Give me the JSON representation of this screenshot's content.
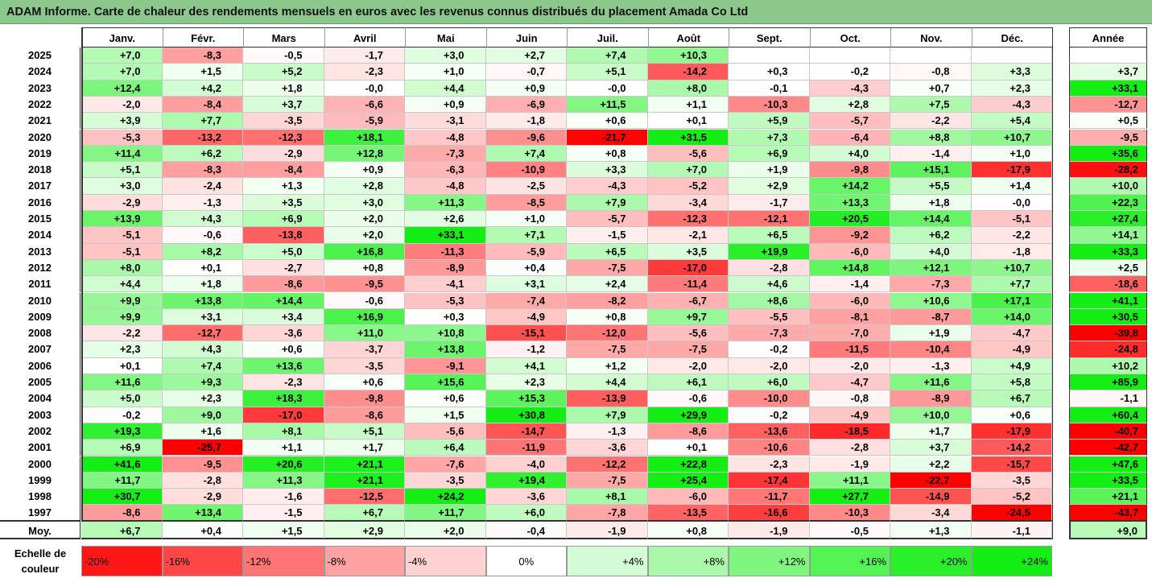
{
  "title": "ADAM Informe. Carte de chaleur des rendements mensuels en euros avec les revenus connus distribués du placement Amada Co Ltd",
  "chart_data": {
    "type": "heatmap",
    "months": [
      "Janv.",
      "Févr.",
      "Mars",
      "Avril",
      "Mai",
      "Juin",
      "Juil.",
      "Août",
      "Sept.",
      "Oct.",
      "Nov.",
      "Déc."
    ],
    "year_header": "Année",
    "rows": [
      {
        "year": "2025",
        "values": [
          "+7,0",
          "-8,3",
          "-0,5",
          "-1,7",
          "+3,0",
          "+2,7",
          "+7,4",
          "+10,3",
          "",
          "",
          "",
          ""
        ],
        "annual": ""
      },
      {
        "year": "2024",
        "values": [
          "+7,0",
          "+1,5",
          "+5,2",
          "-2,3",
          "+1,0",
          "-0,7",
          "+5,1",
          "-14,2",
          "+0,3",
          "-0,2",
          "-0,8",
          "+3,3"
        ],
        "annual": "+3,7"
      },
      {
        "year": "2023",
        "values": [
          "+12,4",
          "+4,2",
          "+1,8",
          "-0,0",
          "+4,4",
          "+0,9",
          "-0,0",
          "+8,0",
          "-0,1",
          "-4,3",
          "+0,7",
          "+2,3"
        ],
        "annual": "+33,1"
      },
      {
        "year": "2022",
        "values": [
          "-2,0",
          "-8,4",
          "+3,7",
          "-6,6",
          "+0,9",
          "-6,9",
          "+11,5",
          "+1,1",
          "-10,3",
          "+2,8",
          "+7,5",
          "-4,3"
        ],
        "annual": "-12,7"
      },
      {
        "year": "2021",
        "values": [
          "+3,9",
          "+7,7",
          "-3,5",
          "-5,9",
          "-3,1",
          "-1,8",
          "+0,6",
          "+0,1",
          "+5,9",
          "-5,7",
          "-2,2",
          "+5,4"
        ],
        "annual": "+0,5"
      },
      {
        "year": "2020",
        "values": [
          "-5,3",
          "-13,2",
          "-12,3",
          "+18,1",
          "-4,8",
          "-9,6",
          "-21,7",
          "+31,5",
          "+7,3",
          "-6,4",
          "+8,8",
          "+10,7"
        ],
        "annual": "-9,5"
      },
      {
        "year": "2019",
        "values": [
          "+11,4",
          "+6,2",
          "-2,9",
          "+12,8",
          "-7,3",
          "+7,4",
          "+0,8",
          "-5,6",
          "+6,9",
          "+4,0",
          "-1,4",
          "+1,0"
        ],
        "annual": "+35,6"
      },
      {
        "year": "2018",
        "values": [
          "+5,1",
          "-8,3",
          "-8,4",
          "+0,9",
          "-6,3",
          "-10,9",
          "+3,3",
          "+7,0",
          "+1,9",
          "-9,8",
          "+15,1",
          "-17,9"
        ],
        "annual": "-28,2"
      },
      {
        "year": "2017",
        "values": [
          "+3,0",
          "-2,4",
          "+1,3",
          "+2,8",
          "-4,8",
          "-2,5",
          "-4,3",
          "-5,2",
          "+2,9",
          "+14,2",
          "+5,5",
          "+1,4"
        ],
        "annual": "+10,0"
      },
      {
        "year": "2016",
        "values": [
          "-2,9",
          "-1,3",
          "+3,5",
          "+3,0",
          "+11,3",
          "-8,5",
          "+7,9",
          "-3,4",
          "-1,7",
          "+13,3",
          "+1,8",
          "-0,0"
        ],
        "annual": "+22,3"
      },
      {
        "year": "2015",
        "values": [
          "+13,9",
          "+4,3",
          "+6,9",
          "+2,0",
          "+2,6",
          "+1,0",
          "-5,7",
          "-12,3",
          "-12,1",
          "+20,5",
          "+14,4",
          "-5,1"
        ],
        "annual": "+27,4"
      },
      {
        "year": "2014",
        "values": [
          "-5,1",
          "-0,6",
          "-13,8",
          "+2,0",
          "+33,1",
          "+7,1",
          "-1,5",
          "-2,1",
          "+6,5",
          "-9,2",
          "+6,2",
          "-2,2"
        ],
        "annual": "+14,1"
      },
      {
        "year": "2013",
        "values": [
          "-5,1",
          "+8,2",
          "+5,0",
          "+16,8",
          "-11,3",
          "-5,9",
          "+6,5",
          "+3,5",
          "+19,9",
          "-6,0",
          "+4,0",
          "-1,8"
        ],
        "annual": "+33,3"
      },
      {
        "year": "2012",
        "values": [
          "+8,0",
          "+0,1",
          "-2,7",
          "+0,8",
          "-8,9",
          "+0,4",
          "-7,5",
          "-17,0",
          "-2,8",
          "+14,8",
          "+12,1",
          "+10,7"
        ],
        "annual": "+2,5"
      },
      {
        "year": "2011",
        "values": [
          "+4,4",
          "+1,8",
          "-8,6",
          "-9,5",
          "-4,1",
          "+3,1",
          "+2,4",
          "-11,4",
          "+4,6",
          "-1,4",
          "-7,3",
          "+7,7"
        ],
        "annual": "-18,6"
      },
      {
        "year": "2010",
        "values": [
          "+9,9",
          "+13,8",
          "+14,4",
          "-0,6",
          "-5,3",
          "-7,4",
          "-8,2",
          "-6,7",
          "+8,6",
          "-6,0",
          "+10,6",
          "+17,1"
        ],
        "annual": "+41,1"
      },
      {
        "year": "2009",
        "values": [
          "+9,9",
          "+3,1",
          "+3,4",
          "+16,9",
          "+0,3",
          "-4,9",
          "+0,8",
          "+9,7",
          "-5,5",
          "-8,1",
          "-8,7",
          "+14,0"
        ],
        "annual": "+30,5"
      },
      {
        "year": "2008",
        "values": [
          "-2,2",
          "-12,7",
          "-3,6",
          "+11,0",
          "+10,8",
          "-15,1",
          "-12,0",
          "-5,6",
          "-7,3",
          "-7,0",
          "+1,9",
          "-4,7"
        ],
        "annual": "-39,8"
      },
      {
        "year": "2007",
        "values": [
          "+2,3",
          "+4,3",
          "+0,6",
          "-3,7",
          "+13,8",
          "-1,2",
          "-7,5",
          "-7,5",
          "-0,2",
          "-11,5",
          "-10,4",
          "-4,9"
        ],
        "annual": "-24,8"
      },
      {
        "year": "2006",
        "values": [
          "+0,1",
          "+7,4",
          "+13,6",
          "-3,5",
          "-9,1",
          "+4,1",
          "+1,2",
          "-2,0",
          "-2,0",
          "-2,0",
          "-1,3",
          "+4,9"
        ],
        "annual": "+10,2"
      },
      {
        "year": "2005",
        "values": [
          "+11,6",
          "+9,3",
          "-2,3",
          "+0,6",
          "+15,6",
          "+2,3",
          "+4,4",
          "+6,1",
          "+6,0",
          "-4,7",
          "+11,6",
          "+5,8"
        ],
        "annual": "+85,9"
      },
      {
        "year": "2004",
        "values": [
          "+5,0",
          "+2,3",
          "+18,3",
          "-9,8",
          "+0,6",
          "+15,3",
          "-13,9",
          "-0,6",
          "-10,0",
          "-0,8",
          "-8,9",
          "+6,7"
        ],
        "annual": "-1,1"
      },
      {
        "year": "2003",
        "values": [
          "-0,2",
          "+9,0",
          "-17,0",
          "-8,6",
          "+1,5",
          "+30,8",
          "+7,9",
          "+29,9",
          "-0,2",
          "-4,9",
          "+10,0",
          "+0,6"
        ],
        "annual": "+60,4"
      },
      {
        "year": "2002",
        "values": [
          "+19,3",
          "+1,6",
          "+8,1",
          "+5,1",
          "-5,6",
          "-14,7",
          "-1,3",
          "-8,6",
          "-13,6",
          "-18,5",
          "+1,7",
          "-17,9"
        ],
        "annual": "-40,7"
      },
      {
        "year": "2001",
        "values": [
          "+6,9",
          "-25,7",
          "+1,1",
          "+1,7",
          "+6,4",
          "-11,9",
          "-3,6",
          "+0,1",
          "-10,6",
          "-2,8",
          "+3,7",
          "-14,2"
        ],
        "annual": "-42,7"
      },
      {
        "year": "2000",
        "values": [
          "+41,6",
          "-9,5",
          "+20,6",
          "+21,1",
          "-7,6",
          "-4,0",
          "-12,2",
          "+22,8",
          "-2,3",
          "-1,9",
          "+2,2",
          "-15,7"
        ],
        "annual": "+47,6"
      },
      {
        "year": "1999",
        "values": [
          "+11,7",
          "-2,8",
          "+11,3",
          "+21,1",
          "-3,5",
          "+19,4",
          "-7,5",
          "+25,4",
          "-17,4",
          "+11,1",
          "-22,7",
          "-3,5"
        ],
        "annual": "+33,5"
      },
      {
        "year": "1998",
        "values": [
          "+30,7",
          "-2,9",
          "-1,6",
          "-12,5",
          "+24,2",
          "-3,6",
          "+8,1",
          "-6,0",
          "-11,7",
          "+27,7",
          "-14,9",
          "-5,2"
        ],
        "annual": "+21,1"
      },
      {
        "year": "1997",
        "values": [
          "-8,6",
          "+13,4",
          "-1,5",
          "+6,7",
          "+11,7",
          "+6,0",
          "-7,8",
          "-13,5",
          "-16,6",
          "-10,3",
          "-3,4",
          "-24,5"
        ],
        "annual": "-43,7"
      }
    ],
    "average": {
      "label": "Moy.",
      "values": [
        "+6,7",
        "+0,4",
        "+1,5",
        "+2,9",
        "+2,0",
        "-0,4",
        "-1,9",
        "+0,8",
        "-1,9",
        "-0,5",
        "+1,3",
        "-1,1"
      ],
      "annual": "+9,0"
    },
    "scale": {
      "label": "Echelle de couleur",
      "steps": [
        {
          "text": "-20%",
          "value": -20
        },
        {
          "text": "-16%",
          "value": -16
        },
        {
          "text": "-12%",
          "value": -12
        },
        {
          "text": "-8%",
          "value": -8
        },
        {
          "text": "-4%",
          "value": -4
        },
        {
          "text": "0%",
          "value": 0
        },
        {
          "text": "+4%",
          "value": 4
        },
        {
          "text": "+8%",
          "value": 8
        },
        {
          "text": "+12%",
          "value": 12
        },
        {
          "text": "+16%",
          "value": 16
        },
        {
          "text": "+20%",
          "value": 20
        },
        {
          "text": "+24%",
          "value": 24
        }
      ]
    },
    "colors": {
      "negative_max": "#ff0000",
      "neutral": "#ffffff",
      "positive_max": "#22ee22"
    }
  }
}
